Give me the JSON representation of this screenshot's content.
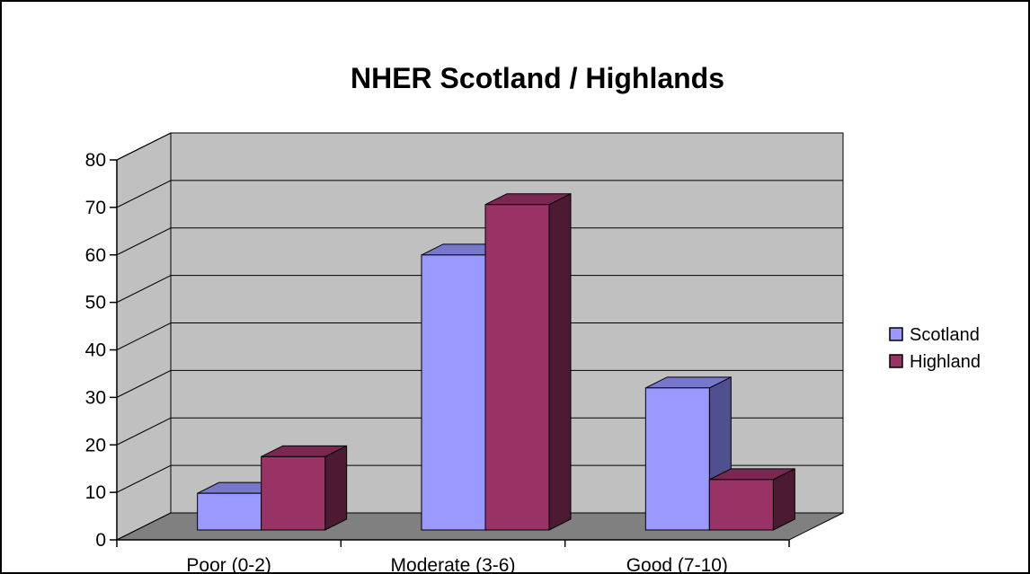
{
  "chart_data": {
    "type": "bar",
    "title": "NHER Scotland / Highlands",
    "xlabel": "",
    "ylabel": "",
    "categories": [
      "Poor (0-2)",
      "Moderate (3-6)",
      "Good (7-10)"
    ],
    "series": [
      {
        "name": "Scotland",
        "values": [
          8,
          60,
          31
        ]
      },
      {
        "name": "Highland",
        "values": [
          16,
          71,
          11
        ]
      }
    ],
    "ylim": [
      0,
      80
    ],
    "yticks": [
      0,
      10,
      20,
      30,
      40,
      50,
      60,
      70,
      80
    ],
    "grid": true,
    "legend_position": "right",
    "colors": {
      "Scotland_face": "#9999ff",
      "Scotland_top": "#7777cc",
      "Scotland_side": "#505090",
      "Highland_face": "#993366",
      "Highland_top": "#7a2851",
      "Highland_side": "#4d1a34",
      "wall": "#c0c0c0",
      "floor": "#808080"
    }
  }
}
